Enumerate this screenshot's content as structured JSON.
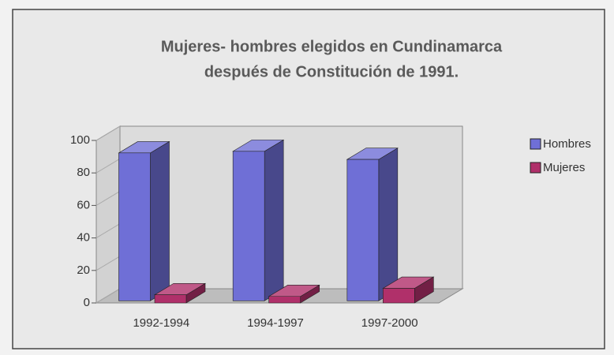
{
  "chart_data": {
    "type": "bar3d",
    "title": [
      "Mujeres- hombres elegidos en Cundinamarca",
      "después de Constitución de 1991."
    ],
    "categories": [
      "1992-1994",
      "1994-1997",
      "1997-2000"
    ],
    "series": [
      {
        "name": "Hombres",
        "color": "#6f6fd6",
        "values": [
          91,
          92,
          87
        ]
      },
      {
        "name": "Mujeres",
        "color": "#b0306a",
        "values": [
          5,
          4,
          9
        ]
      }
    ],
    "ylim": [
      0,
      100
    ],
    "yticks": [
      0,
      20,
      40,
      60,
      80,
      100
    ],
    "legend": "right"
  }
}
